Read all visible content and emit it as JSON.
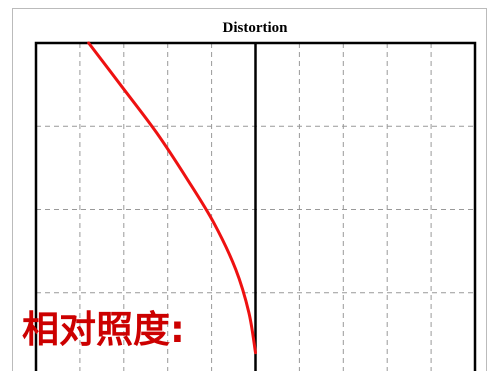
{
  "chart_data": {
    "type": "line",
    "title": "Distortion",
    "xlabel": "",
    "ylabel": "",
    "xlim": [
      -100,
      100
    ],
    "ylim": [
      0,
      100
    ],
    "grid": true,
    "grid_divisions": {
      "x": 10,
      "y": 4
    },
    "series": [
      {
        "color": "#ee1111",
        "points": [
          [
            -76,
            100
          ],
          [
            -61,
            87
          ],
          [
            -45,
            73
          ],
          [
            -31,
            59
          ],
          [
            -19,
            46
          ],
          [
            -9,
            32
          ],
          [
            -3,
            19
          ],
          [
            0,
            7
          ]
        ]
      }
    ]
  },
  "overlay": {
    "text": "相对照度:",
    "color": "#cc0000"
  },
  "colors": {
    "frame": "#000000",
    "grid": "#999999",
    "outer_border": "#bbbbbb",
    "background": "#ffffff"
  }
}
